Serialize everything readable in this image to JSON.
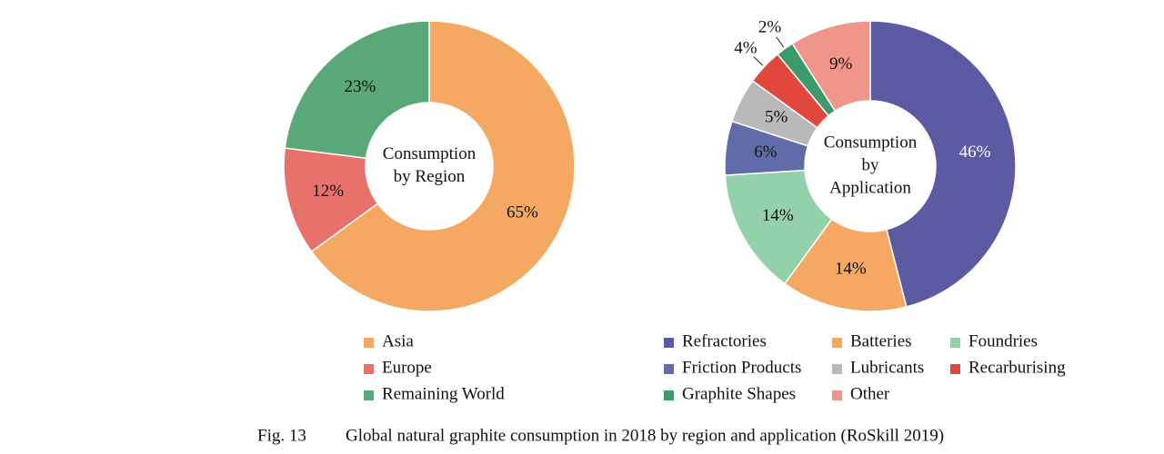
{
  "chart_data": [
    {
      "type": "donut",
      "center_label": [
        "Consumption",
        "by Region"
      ],
      "categories": [
        "Asia",
        "Europe",
        "Remaining World"
      ],
      "values": [
        65,
        12,
        23
      ],
      "value_labels": [
        "65%",
        "12%",
        "23%"
      ],
      "colors": [
        "#f5a862",
        "#e8716b",
        "#5aa878"
      ],
      "legend_columns": 1
    },
    {
      "type": "donut",
      "center_label": [
        "Consumption",
        "by",
        "Application"
      ],
      "categories": [
        "Refractories",
        "Batteries",
        "Foundries",
        "Friction Products",
        "Lubricants",
        "Recarburising",
        "Graphite Shapes",
        "Other"
      ],
      "values": [
        46,
        14,
        14,
        6,
        5,
        4,
        2,
        9
      ],
      "value_labels": [
        "46%",
        "14%",
        "14%",
        "6%",
        "5%",
        "4%",
        "2%",
        "9%"
      ],
      "colors": [
        "#5b5aa2",
        "#f5a862",
        "#92d1aa",
        "#5f6ca8",
        "#b9b9b9",
        "#e2473d",
        "#3f9a6b",
        "#ef958a"
      ],
      "legend_columns": 3
    }
  ],
  "caption": {
    "label": "Fig. 13",
    "text": "Global natural graphite consumption in 2018 by region and application (RoSkill 2019)"
  }
}
